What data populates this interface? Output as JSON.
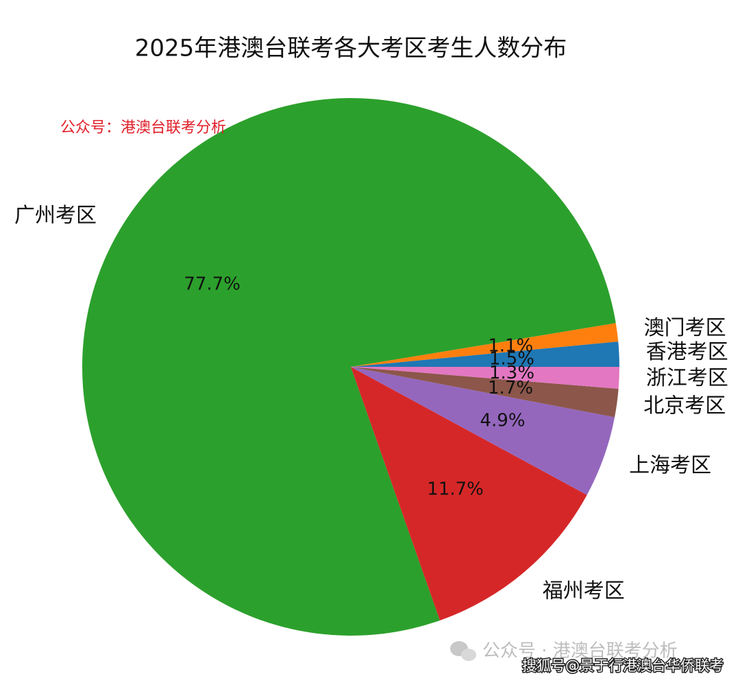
{
  "chart_data": {
    "type": "pie",
    "title": "2025年港澳台联考各大考区考生人数分布",
    "categories": [
      "香港考区",
      "澳门考区",
      "广州考区",
      "福州考区",
      "上海考区",
      "北京考区",
      "浙江考区"
    ],
    "values": [
      1.5,
      1.1,
      77.7,
      11.7,
      4.9,
      1.7,
      1.3
    ],
    "value_labels": [
      "1.5%",
      "1.1%",
      "77.7%",
      "11.7%",
      "4.9%",
      "1.7%",
      "1.3%"
    ],
    "colors": [
      "#1f77b4",
      "#ff7f0e",
      "#2ca02c",
      "#d62728",
      "#9467bd",
      "#8c564b",
      "#e377c2"
    ],
    "annotations": [
      "公众号：港澳台联考分析",
      "公众号 · 港澳台联考分析",
      "搜狐号@景于行港澳台华侨联考"
    ]
  }
}
